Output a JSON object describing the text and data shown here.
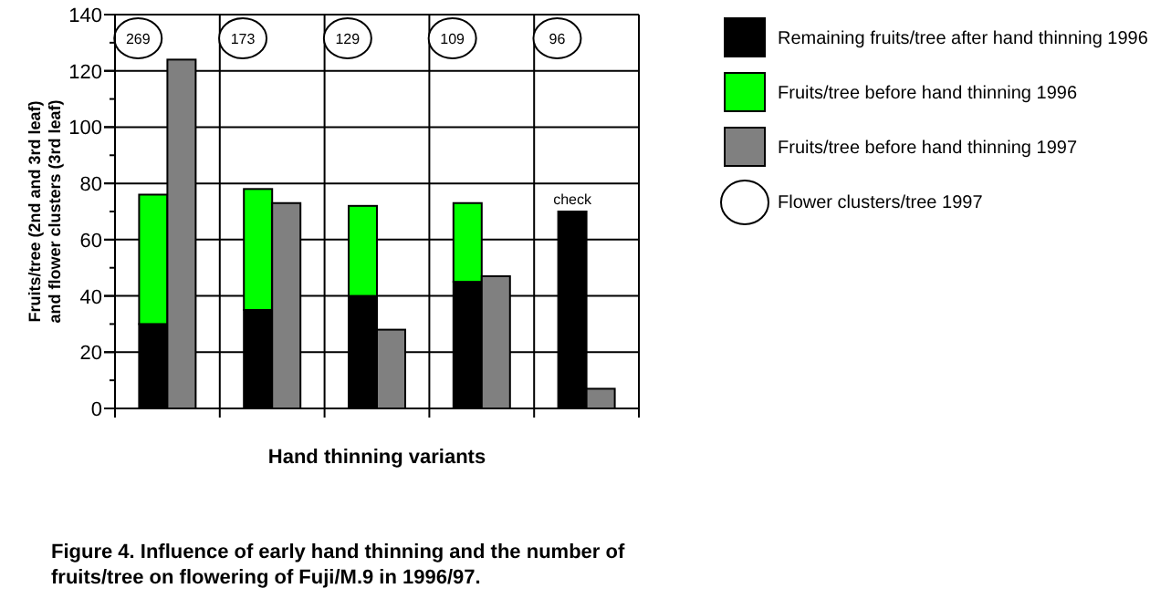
{
  "chart_data": [
    {
      "type": "bar",
      "xlabel": "Hand thinning variants",
      "ylabel": "Fruits/tree (2nd and 3rd leaf) and flower clusters (3rd leaf)",
      "categories": [
        null,
        null,
        null,
        null,
        null
      ],
      "stacked": true,
      "grid": true,
      "legend": "right",
      "ylim": [
        0,
        140
      ],
      "yticks": [
        0,
        {
          "value": 10,
          "label": null
        },
        20,
        {
          "value": 30,
          "label": null
        },
        40,
        {
          "value": 50,
          "label": null
        },
        60,
        {
          "value": 70,
          "label": null
        },
        80,
        {
          "value": 90,
          "label": null
        },
        100,
        {
          "value": 110,
          "label": null
        },
        120,
        {
          "value": 130,
          "label": null
        },
        140
      ],
      "series": [
        {
          "name": "Remaining fruits/tree after hand thinning 1996",
          "color": "#000000",
          "values": [
            30,
            35,
            40,
            45,
            70
          ],
          "value_labels": [
            null,
            null,
            null,
            null,
            "check"
          ]
        },
        {
          "name": "Fruits/tree before hand thinning 1996",
          "color": "#00ff00",
          "values": [
            46,
            43,
            32,
            28,
            null
          ]
        }
      ],
      "annotations": [
        "269",
        "173",
        "129",
        "109",
        "96",
        "Flower clusters/tree 1997",
        "Figure 4.  Influence of early hand thinning and the number of fruits/tree on flowering of Fuji/M.9 in 1996/97."
      ]
    },
    {
      "type": "bar",
      "categories": [
        null,
        null,
        null,
        null,
        null
      ],
      "tick_labels": false,
      "legend": "right",
      "ylim": [
        0,
        140
      ],
      "yticks": [
        0,
        20,
        40,
        60,
        80,
        100,
        120,
        140
      ],
      "series": [
        {
          "name": "Fruits/tree before hand thinning 1997",
          "color": "#808080",
          "values": [
            124,
            73,
            28,
            47,
            7
          ]
        }
      ]
    }
  ]
}
